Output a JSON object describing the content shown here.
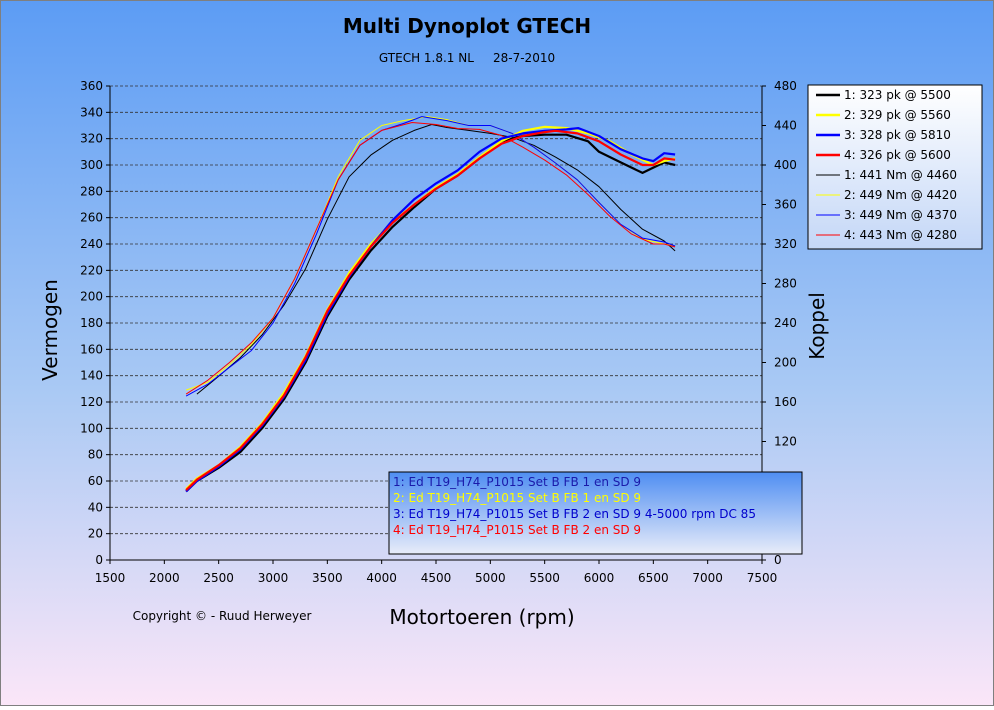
{
  "chart_data": {
    "type": "line",
    "title": "Multi Dynoplot GTECH",
    "subtitle": "GTECH 1.8.1 NL     28-7-2010",
    "xlabel": "Motortoeren (rpm)",
    "ylabel": "Vermogen",
    "y2label": "Koppel",
    "copyright": "Copyright © - Ruud Herweyer",
    "xlim": [
      1500,
      7500
    ],
    "xticks": [
      1500,
      2000,
      2500,
      3000,
      3500,
      4000,
      4500,
      5000,
      5500,
      6000,
      6500,
      7000,
      7500
    ],
    "ylim": [
      0,
      360
    ],
    "yticks": [
      0,
      20,
      40,
      60,
      80,
      100,
      120,
      140,
      160,
      180,
      200,
      220,
      240,
      260,
      280,
      300,
      320,
      340,
      360
    ],
    "y2lim": [
      0,
      480
    ],
    "y2ticks": [
      0,
      120,
      160,
      200,
      240,
      280,
      320,
      360,
      400,
      440,
      480
    ],
    "grid": "horizontal dashed",
    "legend_position": "top-right",
    "colors": {
      "black": "#000000",
      "yellow": "#FFFF00",
      "blue": "#0000FF",
      "red": "#FF0000"
    },
    "power_series": [
      {
        "name": "1: 323 pk  @ 5500",
        "color": "#000000",
        "x": [
          2200,
          2300,
          2500,
          2700,
          2900,
          3100,
          3300,
          3500,
          3700,
          3900,
          4100,
          4300,
          4500,
          4700,
          4900,
          5100,
          5300,
          5500,
          5700,
          5900,
          6000,
          6200,
          6400,
          6500,
          6600,
          6700
        ],
        "y": [
          52,
          60,
          70,
          82,
          100,
          122,
          150,
          185,
          213,
          235,
          253,
          268,
          282,
          292,
          305,
          318,
          322,
          323,
          323,
          318,
          310,
          302,
          294,
          298,
          302,
          300
        ]
      },
      {
        "name": "2: 329 pk  @ 5560",
        "color": "#FFFF00",
        "x": [
          2200,
          2300,
          2500,
          2700,
          2900,
          3100,
          3300,
          3500,
          3700,
          3900,
          4100,
          4300,
          4500,
          4700,
          4900,
          5100,
          5300,
          5500,
          5700,
          5900,
          6100,
          6300,
          6500,
          6600,
          6700
        ],
        "y": [
          54,
          62,
          72,
          86,
          104,
          127,
          155,
          190,
          218,
          240,
          257,
          270,
          283,
          293,
          306,
          318,
          326,
          329,
          328,
          324,
          318,
          308,
          300,
          303,
          305
        ]
      },
      {
        "name": "3: 328 pk  @ 5810",
        "color": "#0000FF",
        "x": [
          2200,
          2300,
          2500,
          2700,
          2900,
          3100,
          3300,
          3500,
          3700,
          3900,
          4100,
          4300,
          4500,
          4700,
          4900,
          5100,
          5300,
          5500,
          5700,
          5810,
          6000,
          6200,
          6400,
          6500,
          6600,
          6700
        ],
        "y": [
          52,
          60,
          71,
          84,
          102,
          124,
          152,
          187,
          215,
          238,
          258,
          274,
          286,
          296,
          310,
          320,
          324,
          326,
          327,
          328,
          322,
          312,
          305,
          303,
          309,
          308
        ]
      },
      {
        "name": "4: 326 pk  @ 5600",
        "color": "#FF0000",
        "x": [
          2200,
          2300,
          2500,
          2700,
          2900,
          3100,
          3300,
          3500,
          3700,
          3900,
          4100,
          4300,
          4500,
          4700,
          4900,
          5100,
          5300,
          5500,
          5600,
          5800,
          6000,
          6200,
          6400,
          6500,
          6600,
          6700
        ],
        "y": [
          53,
          61,
          72,
          85,
          103,
          125,
          154,
          189,
          216,
          238,
          256,
          270,
          282,
          292,
          305,
          316,
          322,
          325,
          326,
          324,
          318,
          308,
          300,
          300,
          305,
          304
        ]
      }
    ],
    "torque_series": [
      {
        "name": "1: 441 Nm  @ 4460",
        "color": "#000000",
        "x": [
          2300,
          2500,
          2700,
          2900,
          3100,
          3300,
          3500,
          3700,
          3900,
          4100,
          4300,
          4460,
          4600,
          4800,
          5000,
          5200,
          5400,
          5600,
          5800,
          6000,
          6200,
          6400,
          6600,
          6700
        ],
        "y": [
          168,
          186,
          205,
          228,
          258,
          295,
          345,
          388,
          410,
          425,
          435,
          441,
          438,
          435,
          432,
          428,
          420,
          408,
          395,
          378,
          355,
          335,
          323,
          313
        ]
      },
      {
        "name": "2: 449 Nm  @ 4420",
        "color": "#FFFF00",
        "x": [
          2200,
          2400,
          2600,
          2800,
          3000,
          3200,
          3400,
          3600,
          3800,
          4000,
          4200,
          4420,
          4600,
          4800,
          5000,
          5200,
          5400,
          5600,
          5800,
          6000,
          6200,
          6400,
          6600,
          6700
        ],
        "y": [
          172,
          180,
          198,
          218,
          245,
          285,
          335,
          388,
          425,
          440,
          445,
          449,
          446,
          440,
          440,
          432,
          418,
          402,
          385,
          362,
          340,
          325,
          320,
          318
        ]
      },
      {
        "name": "3: 449 Nm  @ 4370",
        "color": "#0000FF",
        "x": [
          2200,
          2400,
          2600,
          2800,
          3000,
          3200,
          3400,
          3600,
          3800,
          4000,
          4200,
          4370,
          4600,
          4800,
          5000,
          5200,
          5400,
          5600,
          5800,
          6000,
          6200,
          6400,
          6600,
          6700
        ],
        "y": [
          166,
          178,
          195,
          212,
          240,
          280,
          330,
          385,
          420,
          435,
          442,
          449,
          445,
          440,
          440,
          432,
          418,
          402,
          385,
          362,
          340,
          326,
          322,
          318
        ]
      },
      {
        "name": "4: 443 Nm  @ 4280",
        "color": "#FF0000",
        "x": [
          2200,
          2400,
          2600,
          2800,
          3000,
          3200,
          3400,
          3600,
          3800,
          4000,
          4280,
          4500,
          4700,
          4900,
          5100,
          5300,
          5500,
          5700,
          5900,
          6100,
          6300,
          6500,
          6600,
          6700
        ],
        "y": [
          168,
          182,
          200,
          220,
          245,
          285,
          335,
          385,
          420,
          435,
          443,
          441,
          437,
          436,
          430,
          418,
          405,
          390,
          370,
          348,
          330,
          320,
          320,
          317
        ]
      }
    ],
    "run_legend": [
      {
        "text": "1: Ed T19_H74_P1015  Set B FB 1 en SD 9",
        "color": "#1a1aaa"
      },
      {
        "text": "2: Ed T19_H74_P1015  Set B FB 1 en SD 9",
        "color": "#FFFF00"
      },
      {
        "text": "3: Ed T19_H74_P1015  Set B FB 2 en SD 9 4-5000 rpm DC 85",
        "color": "#0000CC"
      },
      {
        "text": "4: Ed T19_H74_P1015  Set B FB 2 en SD 9",
        "color": "#FF0000"
      }
    ]
  }
}
